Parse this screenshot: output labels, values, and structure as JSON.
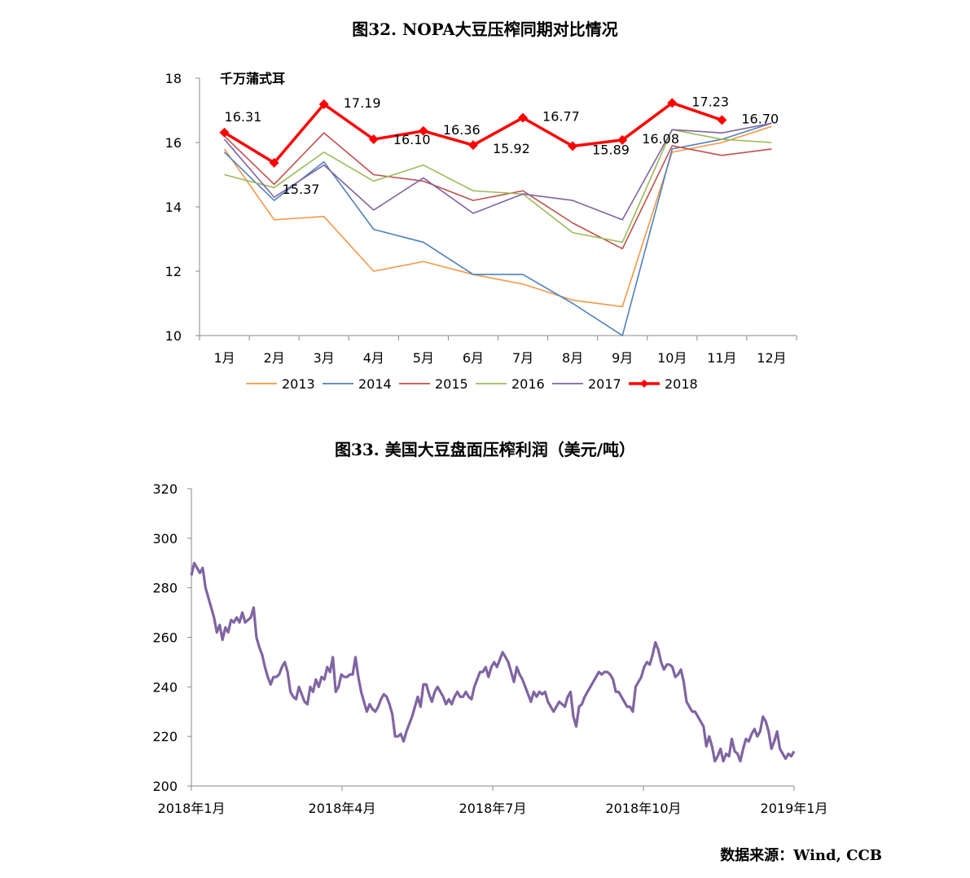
{
  "figures": {
    "fig1_title": "图32.  NOPA大豆压榨同期对比情况",
    "fig2_title": "图33.  美国大豆盘面压榨利润（美元/吨）",
    "source": "数据来源：Wind, CCB"
  },
  "chart_data": [
    {
      "type": "line",
      "unit_label": "千万蒲式耳",
      "categories": [
        "1月",
        "2月",
        "3月",
        "4月",
        "5月",
        "6月",
        "7月",
        "8月",
        "9月",
        "10月",
        "11月",
        "12月"
      ],
      "ylim": [
        10,
        18
      ],
      "yticks": [
        10,
        12,
        14,
        16,
        18
      ],
      "grid": false,
      "legend_position": "bottom",
      "series": [
        {
          "name": "2013",
          "color": "#F79646",
          "values": [
            15.8,
            13.6,
            13.7,
            12.0,
            12.3,
            11.9,
            11.6,
            11.1,
            10.9,
            15.7,
            16.0,
            16.5
          ]
        },
        {
          "name": "2014",
          "color": "#4F81BD",
          "values": [
            15.7,
            14.2,
            15.4,
            13.3,
            12.9,
            11.9,
            11.9,
            11.0,
            10.0,
            15.8,
            16.1,
            16.6
          ]
        },
        {
          "name": "2015",
          "color": "#C0504D",
          "values": [
            16.2,
            14.7,
            16.3,
            15.0,
            14.8,
            14.2,
            14.5,
            13.5,
            12.7,
            15.9,
            15.6,
            15.8
          ]
        },
        {
          "name": "2016",
          "color": "#9BBB59",
          "values": [
            15.0,
            14.6,
            15.7,
            14.8,
            15.3,
            14.5,
            14.4,
            13.2,
            12.9,
            16.4,
            16.1,
            16.0
          ]
        },
        {
          "name": "2017",
          "color": "#8064A2",
          "values": [
            16.1,
            14.3,
            15.3,
            13.9,
            14.9,
            13.8,
            14.4,
            14.2,
            13.6,
            16.4,
            16.3,
            16.6
          ]
        },
        {
          "name": "2018",
          "color": "#FF0000",
          "values": [
            16.31,
            15.37,
            17.19,
            16.1,
            16.36,
            15.92,
            16.77,
            15.89,
            16.08,
            17.23,
            16.7,
            null
          ]
        }
      ],
      "data_labels": [
        "16.31",
        "15.37",
        "17.19",
        "16.10",
        "16.36",
        "15.92",
        "16.77",
        "15.89",
        "16.08",
        "17.23",
        "16.70"
      ]
    },
    {
      "type": "line",
      "ylim": [
        200,
        320
      ],
      "yticks": [
        200,
        220,
        240,
        260,
        280,
        300,
        320
      ],
      "xticks": [
        "2018年1月",
        "2018年4月",
        "2018年7月",
        "2018年10月",
        "2019年1月"
      ],
      "grid": false,
      "series": [
        {
          "name": "",
          "color": "#8064A2",
          "values": [
            285,
            290,
            288,
            286,
            288,
            280,
            276,
            272,
            268,
            262,
            265,
            259,
            264,
            262,
            267,
            266,
            268,
            266,
            270,
            266,
            267,
            268,
            272,
            260,
            256,
            253,
            248,
            244,
            241,
            244,
            244,
            245,
            248,
            250,
            246,
            238,
            236,
            235,
            240,
            237,
            234,
            233,
            240,
            238,
            243,
            240,
            244,
            243,
            248,
            246,
            252,
            238,
            240,
            245,
            244,
            244,
            245,
            245,
            252,
            244,
            238,
            234,
            230,
            233,
            231,
            230,
            232,
            235,
            237,
            236,
            233,
            229,
            220,
            220,
            221,
            218,
            222,
            225,
            228,
            232,
            236,
            232,
            241,
            241,
            237,
            234,
            238,
            240,
            238,
            236,
            233,
            235,
            233,
            236,
            238,
            236,
            236,
            238,
            236,
            235,
            240,
            243,
            246,
            246,
            248,
            244,
            248,
            250,
            248,
            251,
            254,
            252,
            250,
            246,
            242,
            248,
            245,
            243,
            240,
            237,
            234,
            238,
            236,
            238,
            237,
            238,
            234,
            232,
            230,
            232,
            234,
            233,
            232,
            236,
            238,
            228,
            224,
            232,
            233,
            236,
            238,
            240,
            242,
            244,
            246,
            245,
            246,
            246,
            245,
            243,
            238,
            238,
            236,
            234,
            232,
            232,
            230,
            240,
            242,
            244,
            248,
            250,
            249,
            253,
            258,
            255,
            250,
            247,
            249,
            249,
            248,
            244,
            245,
            247,
            242,
            234,
            232,
            230,
            230,
            228,
            226,
            224,
            216,
            220,
            216,
            210,
            212,
            215,
            210,
            213,
            212,
            219,
            214,
            213,
            210,
            215,
            219,
            218,
            221,
            223,
            220,
            222,
            228,
            226,
            222,
            215,
            218,
            222,
            215,
            213,
            211,
            213,
            212,
            214
          ]
        }
      ]
    }
  ]
}
